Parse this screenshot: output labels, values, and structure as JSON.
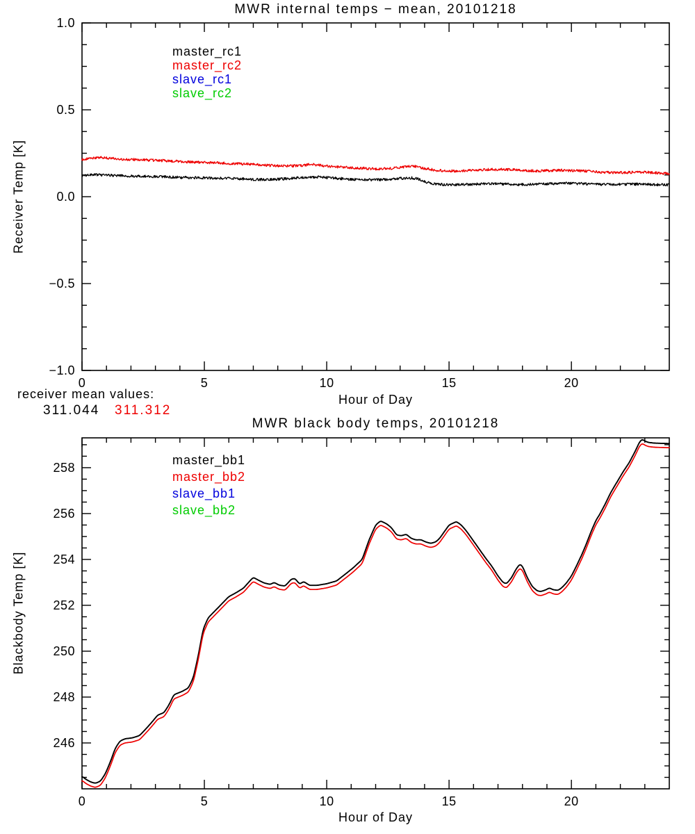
{
  "page": {
    "background": "#ffffff"
  },
  "chart_data": [
    {
      "type": "line",
      "title": "MWR internal temps − mean, 20101218",
      "xlabel": "Hour of Day",
      "ylabel": "Receiver Temp [K]",
      "xlim": [
        0,
        24
      ],
      "ylim": [
        -1.0,
        1.0
      ],
      "grid": false,
      "x_major_ticks": [
        0,
        5,
        10,
        15,
        20
      ],
      "x_tick_labels": [
        "0",
        "5",
        "10",
        "15",
        "20"
      ],
      "x_minor_step": 1,
      "y_major_ticks": [
        -1.0,
        -0.5,
        0.0,
        0.5,
        1.0
      ],
      "y_tick_labels": [
        "−1.0",
        "−0.5",
        "0.0",
        "0.5",
        "1.0"
      ],
      "y_minor_step": 0.125,
      "legend": {
        "position": "upper-left-inside",
        "entries": [
          {
            "label": "master_rc1",
            "color": "#000000"
          },
          {
            "label": "master_rc2",
            "color": "#ee0000"
          },
          {
            "label": "slave_rc1",
            "color": "#0000dd"
          },
          {
            "label": "slave_rc2",
            "color": "#00cc00"
          }
        ]
      },
      "annotation": {
        "line1": "receiver mean values:",
        "values": [
          {
            "text": "311.044",
            "color": "#000000"
          },
          {
            "text": "311.312",
            "color": "#ee0000"
          }
        ]
      },
      "series": [
        {
          "name": "master_rc1",
          "color": "#000000",
          "width": 1.3,
          "noise": 0.0075,
          "points": [
            [
              0,
              0.122
            ],
            [
              0.5,
              0.127
            ],
            [
              1,
              0.123
            ],
            [
              2,
              0.119
            ],
            [
              3,
              0.115
            ],
            [
              4,
              0.111
            ],
            [
              5,
              0.108
            ],
            [
              6,
              0.106
            ],
            [
              7,
              0.1
            ],
            [
              7.6,
              0.098
            ],
            [
              8.3,
              0.103
            ],
            [
              9,
              0.11
            ],
            [
              9.6,
              0.114
            ],
            [
              10.2,
              0.108
            ],
            [
              11,
              0.1
            ],
            [
              11.8,
              0.097
            ],
            [
              12.5,
              0.099
            ],
            [
              13.1,
              0.106
            ],
            [
              13.5,
              0.108
            ],
            [
              13.8,
              0.1
            ],
            [
              14.1,
              0.082
            ],
            [
              14.5,
              0.072
            ],
            [
              15.2,
              0.068
            ],
            [
              16,
              0.072
            ],
            [
              16.8,
              0.075
            ],
            [
              17.5,
              0.071
            ],
            [
              18.2,
              0.07
            ],
            [
              19,
              0.074
            ],
            [
              19.8,
              0.077
            ],
            [
              20.5,
              0.075
            ],
            [
              21.2,
              0.07
            ],
            [
              22,
              0.071
            ],
            [
              22.8,
              0.073
            ],
            [
              23.4,
              0.069
            ],
            [
              24,
              0.068
            ]
          ]
        },
        {
          "name": "master_rc2",
          "color": "#ee0000",
          "width": 1.3,
          "noise": 0.0075,
          "points": [
            [
              0,
              0.214
            ],
            [
              0.4,
              0.222
            ],
            [
              0.8,
              0.226
            ],
            [
              1.3,
              0.219
            ],
            [
              2,
              0.214
            ],
            [
              2.8,
              0.21
            ],
            [
              3.6,
              0.206
            ],
            [
              4.4,
              0.2
            ],
            [
              5.2,
              0.196
            ],
            [
              6,
              0.192
            ],
            [
              6.8,
              0.187
            ],
            [
              7.5,
              0.181
            ],
            [
              8.2,
              0.176
            ],
            [
              8.8,
              0.178
            ],
            [
              9.4,
              0.186
            ],
            [
              10,
              0.176
            ],
            [
              10.7,
              0.169
            ],
            [
              11.4,
              0.164
            ],
            [
              12,
              0.16
            ],
            [
              12.6,
              0.163
            ],
            [
              13.2,
              0.172
            ],
            [
              13.6,
              0.176
            ],
            [
              14,
              0.163
            ],
            [
              14.5,
              0.151
            ],
            [
              15.2,
              0.148
            ],
            [
              16,
              0.153
            ],
            [
              16.7,
              0.156
            ],
            [
              17.3,
              0.157
            ],
            [
              18,
              0.151
            ],
            [
              18.7,
              0.148
            ],
            [
              19.4,
              0.152
            ],
            [
              20,
              0.151
            ],
            [
              20.7,
              0.146
            ],
            [
              21.4,
              0.14
            ],
            [
              22.1,
              0.138
            ],
            [
              22.8,
              0.142
            ],
            [
              23.4,
              0.138
            ],
            [
              24,
              0.133
            ]
          ]
        }
      ]
    },
    {
      "type": "line",
      "title": "MWR black body temps, 20101218",
      "xlabel": "Hour of Day",
      "ylabel": "Blackbody Temp [K]",
      "xlim": [
        0,
        24
      ],
      "ylim": [
        244.0,
        259.3
      ],
      "grid": false,
      "x_major_ticks": [
        0,
        5,
        10,
        15,
        20
      ],
      "x_tick_labels": [
        "0",
        "5",
        "10",
        "15",
        "20"
      ],
      "x_minor_step": 1,
      "y_major_ticks": [
        246,
        248,
        250,
        252,
        254,
        256,
        258
      ],
      "y_tick_labels": [
        "246",
        "248",
        "250",
        "252",
        "254",
        "256",
        "258"
      ],
      "y_minor_step": 0.5,
      "legend": {
        "position": "upper-left-inside",
        "entries": [
          {
            "label": "master_bb1",
            "color": "#000000"
          },
          {
            "label": "master_bb2",
            "color": "#ee0000"
          },
          {
            "label": "slave_bb1",
            "color": "#0000dd"
          },
          {
            "label": "slave_bb2",
            "color": "#00cc00"
          }
        ]
      },
      "series": [
        {
          "name": "master_bb1",
          "color": "#000000",
          "width": 1.9,
          "noise": 0,
          "smooth": true,
          "points": [
            [
              0,
              244.55
            ],
            [
              0.15,
              244.42
            ],
            [
              0.35,
              244.3
            ],
            [
              0.55,
              244.24
            ],
            [
              0.75,
              244.33
            ],
            [
              0.95,
              244.65
            ],
            [
              1.15,
              245.15
            ],
            [
              1.35,
              245.75
            ],
            [
              1.55,
              246.08
            ],
            [
              1.75,
              246.18
            ],
            [
              2.05,
              246.22
            ],
            [
              2.35,
              246.32
            ],
            [
              2.6,
              246.6
            ],
            [
              2.85,
              246.9
            ],
            [
              3.1,
              247.22
            ],
            [
              3.35,
              247.32
            ],
            [
              3.55,
              247.65
            ],
            [
              3.75,
              248.1
            ],
            [
              4.1,
              248.25
            ],
            [
              4.35,
              248.4
            ],
            [
              4.55,
              248.85
            ],
            [
              4.75,
              249.8
            ],
            [
              4.95,
              250.95
            ],
            [
              5.15,
              251.45
            ],
            [
              5.4,
              251.72
            ],
            [
              5.7,
              252.05
            ],
            [
              6,
              252.38
            ],
            [
              6.3,
              252.55
            ],
            [
              6.6,
              252.75
            ],
            [
              6.85,
              253.05
            ],
            [
              7,
              253.22
            ],
            [
              7.2,
              253.1
            ],
            [
              7.45,
              252.97
            ],
            [
              7.7,
              252.91
            ],
            [
              7.85,
              253.0
            ],
            [
              8.05,
              252.88
            ],
            [
              8.3,
              252.84
            ],
            [
              8.55,
              253.14
            ],
            [
              8.7,
              253.17
            ],
            [
              8.9,
              252.92
            ],
            [
              9.05,
              253.04
            ],
            [
              9.3,
              252.87
            ],
            [
              9.6,
              252.87
            ],
            [
              10,
              252.94
            ],
            [
              10.4,
              253.06
            ],
            [
              10.75,
              253.35
            ],
            [
              11.1,
              253.65
            ],
            [
              11.45,
              254.0
            ],
            [
              11.75,
              254.9
            ],
            [
              12,
              255.5
            ],
            [
              12.2,
              255.68
            ],
            [
              12.45,
              255.55
            ],
            [
              12.65,
              255.38
            ],
            [
              12.85,
              255.07
            ],
            [
              13.05,
              255.03
            ],
            [
              13.25,
              255.1
            ],
            [
              13.45,
              254.92
            ],
            [
              13.65,
              254.85
            ],
            [
              13.85,
              254.86
            ],
            [
              14.05,
              254.76
            ],
            [
              14.25,
              254.7
            ],
            [
              14.45,
              254.76
            ],
            [
              14.6,
              254.9
            ],
            [
              14.8,
              255.2
            ],
            [
              15,
              255.5
            ],
            [
              15.3,
              255.65
            ],
            [
              15.5,
              255.5
            ],
            [
              15.7,
              255.25
            ],
            [
              15.95,
              254.88
            ],
            [
              16.2,
              254.5
            ],
            [
              16.5,
              254.05
            ],
            [
              16.75,
              253.7
            ],
            [
              17,
              253.28
            ],
            [
              17.2,
              253.0
            ],
            [
              17.35,
              252.94
            ],
            [
              17.55,
              253.2
            ],
            [
              17.75,
              253.6
            ],
            [
              17.9,
              253.8
            ],
            [
              18,
              253.7
            ],
            [
              18.2,
              253.2
            ],
            [
              18.4,
              252.82
            ],
            [
              18.6,
              252.63
            ],
            [
              18.75,
              252.6
            ],
            [
              18.95,
              252.67
            ],
            [
              19.1,
              252.76
            ],
            [
              19.25,
              252.68
            ],
            [
              19.45,
              252.65
            ],
            [
              19.6,
              252.76
            ],
            [
              19.8,
              252.98
            ],
            [
              20,
              253.28
            ],
            [
              20.2,
              253.7
            ],
            [
              20.4,
              254.15
            ],
            [
              20.6,
              254.65
            ],
            [
              20.8,
              255.2
            ],
            [
              21,
              255.7
            ],
            [
              21.15,
              255.95
            ],
            [
              21.35,
              256.35
            ],
            [
              21.6,
              256.9
            ],
            [
              21.85,
              257.35
            ],
            [
              22.1,
              257.8
            ],
            [
              22.35,
              258.2
            ],
            [
              22.6,
              258.7
            ],
            [
              22.8,
              259.15
            ],
            [
              22.9,
              259.24
            ],
            [
              23,
              259.16
            ],
            [
              23.15,
              259.1
            ],
            [
              23.4,
              259.07
            ],
            [
              23.7,
              259.06
            ],
            [
              24,
              259.05
            ]
          ]
        },
        {
          "name": "master_bb2",
          "color": "#ee0000",
          "width": 1.7,
          "noise": 0,
          "smooth": true,
          "offset_from": "master_bb1",
          "offset": -0.18
        }
      ]
    }
  ]
}
